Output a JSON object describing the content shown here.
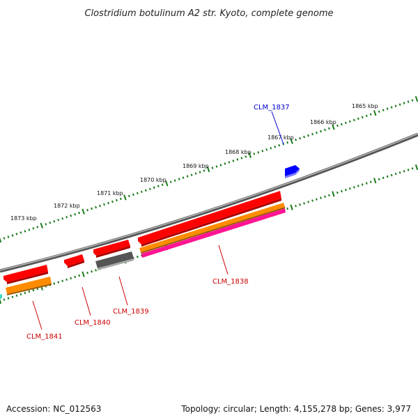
{
  "title": "Clostridium botulinum A2 str. Kyoto, complete genome",
  "footer": {
    "accession": "Accession: NC_012563",
    "summary": "Topology: circular; Length: 4,155,278 bp; Genes: 3,977"
  },
  "colors": {
    "backbone": "#808080",
    "ruler_ticks": "#1a7a1a",
    "gene_red": "#ff0000",
    "gene_blue": "#0000ff",
    "gene_orange": "#ff8c00",
    "gene_pink": "#ff1493",
    "gene_gray": "#555555",
    "label_red": "#cc0000",
    "label_blue": "#0000cc"
  },
  "tick_labels": [
    "1873 kbp",
    "1872 kbp",
    "1871 kbp",
    "1870 kbp",
    "1869 kbp",
    "1868 kbp",
    "1867 kbp",
    "1866 kbp",
    "1865 kbp"
  ],
  "gene_labels": [
    {
      "id": "CLM_1837",
      "color": "blue"
    },
    {
      "id": "CLM_1838",
      "color": "red"
    },
    {
      "id": "CLM_1839",
      "color": "red"
    },
    {
      "id": "CLM_1840",
      "color": "red"
    },
    {
      "id": "CLM_1841",
      "color": "red"
    }
  ]
}
